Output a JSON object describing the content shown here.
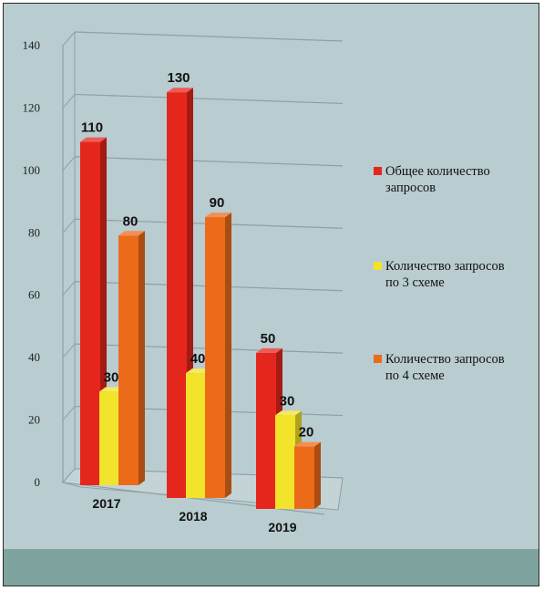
{
  "chart_data": {
    "type": "bar",
    "categories": [
      "2017",
      "2018",
      "2019"
    ],
    "series": [
      {
        "name": "Общее количество запросов",
        "values": [
          110,
          130,
          50
        ],
        "color": "#e5261c"
      },
      {
        "name": "Количество запросов по 3 схеме",
        "values": [
          30,
          40,
          30
        ],
        "color": "#f2e32b"
      },
      {
        "name": "Количество запросов по 4 схеме",
        "values": [
          80,
          90,
          20
        ],
        "color": "#ec6b1a"
      }
    ],
    "yticks": [
      0,
      20,
      40,
      60,
      80,
      100,
      120,
      140
    ],
    "ylim": [
      0,
      140
    ],
    "grid": true,
    "legend_position": "right",
    "legend_lines": [
      [
        "Общее количество",
        "запросов"
      ],
      [
        "Количество запросов",
        "по 3 схеме"
      ],
      [
        "Количество запросов",
        "по 4 схеме"
      ]
    ]
  }
}
